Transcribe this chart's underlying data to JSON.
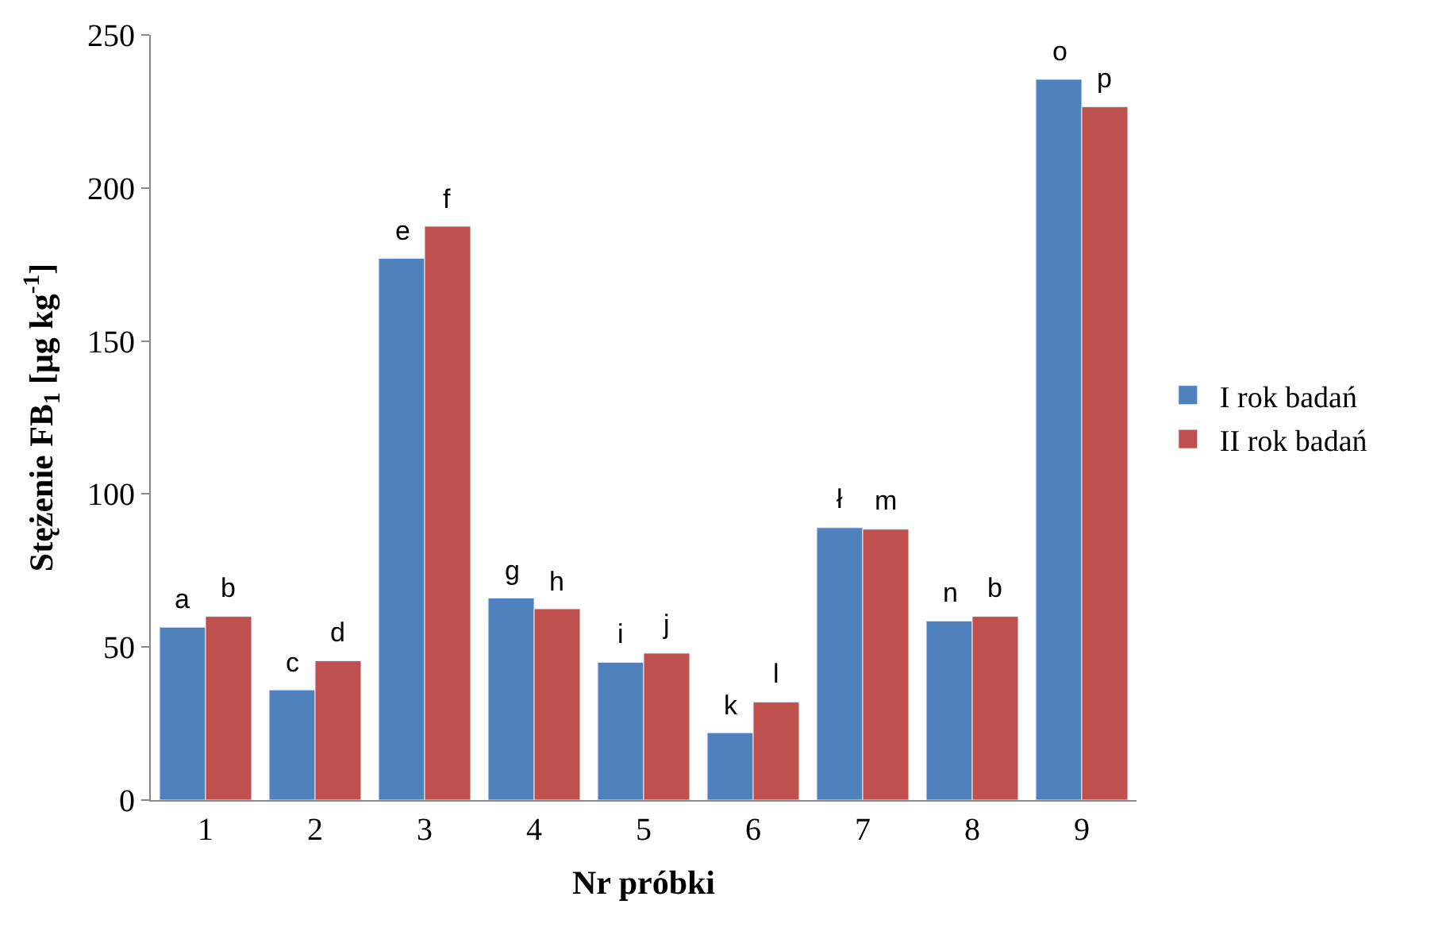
{
  "chart_data": {
    "type": "bar",
    "xlabel": "Nr próbki",
    "ylabel": "Stężenie FB$_{1}$ [μg kg$^{-1}$]",
    "categories": [
      "1",
      "2",
      "3",
      "4",
      "5",
      "6",
      "7",
      "8",
      "9"
    ],
    "series": [
      {
        "name": "I rok badań",
        "color": "#4f81bd",
        "values": [
          56.5,
          36,
          177,
          66,
          45,
          22,
          89,
          58.5,
          235.5
        ]
      },
      {
        "name": "II rok badań",
        "color": "#c0504d",
        "values": [
          60,
          45.5,
          187.5,
          62.5,
          48,
          32,
          88.5,
          60,
          226.5
        ]
      }
    ],
    "ylim": [
      0,
      250
    ],
    "yticks": [
      0,
      50,
      100,
      150,
      200,
      250
    ],
    "grid": false,
    "legend": "right",
    "annotations": [
      {
        "text": "a",
        "x": "1",
        "y": 56.5
      },
      {
        "text": "b",
        "x": "1",
        "y": 60
      },
      {
        "text": "c",
        "x": "2",
        "y": 36
      },
      {
        "text": "d",
        "x": "2",
        "y": 45.5
      },
      {
        "text": "e",
        "x": "3",
        "y": 177
      },
      {
        "text": "f",
        "x": "3",
        "y": 187.5
      },
      {
        "text": "g",
        "x": "4",
        "y": 66
      },
      {
        "text": "h",
        "x": "4",
        "y": 62.5
      },
      {
        "text": "i",
        "x": "5",
        "y": 45
      },
      {
        "text": "j",
        "x": "5",
        "y": 48
      },
      {
        "text": "k",
        "x": "6",
        "y": 22
      },
      {
        "text": "l",
        "x": "6",
        "y": 32
      },
      {
        "text": "ł",
        "x": "7",
        "y": 89
      },
      {
        "text": "m",
        "x": "7",
        "y": 88.5
      },
      {
        "text": "n",
        "x": "8",
        "y": 58.5
      },
      {
        "text": "b",
        "x": "8",
        "y": 60
      },
      {
        "text": "o",
        "x": "9",
        "y": 235.5
      },
      {
        "text": "p",
        "x": "9",
        "y": 226.5
      }
    ]
  }
}
